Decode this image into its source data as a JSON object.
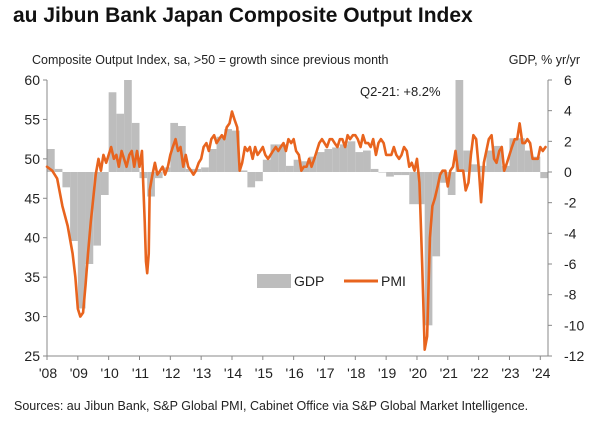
{
  "header": {
    "title": "au Jibun Bank Japan Composite Output Index",
    "subtitle": "Composite Output Index, sa, >50 = growth since previous month",
    "right_axis_label": "GDP, % yr/yr"
  },
  "footer": {
    "source": "Sources: au Jibun Bank, S&P Global PMI, Cabinet Office via S&P Global Market Intelligence."
  },
  "chart_data": {
    "type": "line",
    "title": "au Jibun Bank Japan Composite Output Index",
    "annotation": "Q2-21: +8.2%",
    "legend": {
      "position": "center",
      "entries": [
        "GDP",
        "PMI"
      ]
    },
    "x_axis": {
      "ticks": [
        "'08",
        "'09",
        "'10",
        "'11",
        "'12",
        "'13",
        "'14",
        "'15",
        "'16",
        "'17",
        "'18",
        "'19",
        "'20",
        "'21",
        "'22",
        "'23",
        "'24"
      ],
      "range": [
        2008.0,
        2024.25
      ]
    },
    "y_left": {
      "range": [
        25,
        60
      ],
      "ticks": [
        25,
        30,
        35,
        40,
        45,
        50,
        55,
        60
      ]
    },
    "y_right": {
      "range": [
        -12,
        6
      ],
      "ticks": [
        -12,
        -10,
        -8,
        -6,
        -4,
        -2,
        0,
        2,
        4,
        6
      ]
    },
    "colors": {
      "gdp": "#bdbdbd",
      "pmi": "#e8641e",
      "axis": "#888888"
    },
    "gdp": {
      "name": "GDP",
      "quarters": [
        "Q1-08",
        "Q2-08",
        "Q3-08",
        "Q4-08",
        "Q1-09",
        "Q2-09",
        "Q3-09",
        "Q4-09",
        "Q1-10",
        "Q2-10",
        "Q3-10",
        "Q4-10",
        "Q1-11",
        "Q2-11",
        "Q3-11",
        "Q4-11",
        "Q1-12",
        "Q2-12",
        "Q3-12",
        "Q4-12",
        "Q1-13",
        "Q2-13",
        "Q3-13",
        "Q4-13",
        "Q1-14",
        "Q2-14",
        "Q3-14",
        "Q4-14",
        "Q1-15",
        "Q2-15",
        "Q3-15",
        "Q4-15",
        "Q1-16",
        "Q2-16",
        "Q3-16",
        "Q4-16",
        "Q1-17",
        "Q2-17",
        "Q3-17",
        "Q4-17",
        "Q1-18",
        "Q2-18",
        "Q3-18",
        "Q4-18",
        "Q1-19",
        "Q2-19",
        "Q3-19",
        "Q4-19",
        "Q1-20",
        "Q2-20",
        "Q3-20",
        "Q4-20",
        "Q1-21",
        "Q2-21",
        "Q3-21",
        "Q4-21",
        "Q1-22",
        "Q2-22",
        "Q3-22",
        "Q4-22",
        "Q1-23",
        "Q2-23",
        "Q3-23",
        "Q4-23",
        "Q1-24"
      ],
      "x": [
        2008.0,
        2008.25,
        2008.5,
        2008.75,
        2009.0,
        2009.25,
        2009.5,
        2009.75,
        2010.0,
        2010.25,
        2010.5,
        2010.75,
        2011.0,
        2011.25,
        2011.5,
        2011.75,
        2012.0,
        2012.25,
        2012.5,
        2012.75,
        2013.0,
        2013.25,
        2013.5,
        2013.75,
        2014.0,
        2014.25,
        2014.5,
        2014.75,
        2015.0,
        2015.25,
        2015.5,
        2015.75,
        2016.0,
        2016.25,
        2016.5,
        2016.75,
        2017.0,
        2017.25,
        2017.5,
        2017.75,
        2018.0,
        2018.25,
        2018.5,
        2018.75,
        2019.0,
        2019.25,
        2019.5,
        2019.75,
        2020.0,
        2020.25,
        2020.5,
        2020.75,
        2021.0,
        2021.25,
        2021.5,
        2021.75,
        2022.0,
        2022.25,
        2022.5,
        2022.75,
        2023.0,
        2023.25,
        2023.5,
        2023.75,
        2024.0
      ],
      "values": [
        1.5,
        0.2,
        -1.0,
        -4.5,
        -8.9,
        -6.0,
        -4.8,
        -1.5,
        5.2,
        3.8,
        6.0,
        3.2,
        -0.4,
        -1.6,
        -0.4,
        0.3,
        3.2,
        3.0,
        0.2,
        0.2,
        0.3,
        1.5,
        2.3,
        2.8,
        2.7,
        0.1,
        -1.0,
        -0.6,
        0.8,
        1.8,
        1.8,
        0.4,
        0.8,
        0.7,
        1.0,
        1.3,
        1.5,
        1.6,
        1.8,
        2.0,
        1.3,
        1.4,
        0.2,
        0.0,
        -0.3,
        -0.2,
        -0.2,
        -2.1,
        -2.1,
        -10.0,
        -5.5,
        -0.7,
        -1.5,
        8.2,
        1.4,
        0.5,
        0.4,
        1.4,
        1.7,
        0.4,
        2.2,
        2.2,
        1.4,
        1.0,
        -0.4
      ]
    },
    "pmi": {
      "name": "PMI",
      "points": [
        [
          2008.0,
          49.0
        ],
        [
          2008.17,
          48.5
        ],
        [
          2008.33,
          47.5
        ],
        [
          2008.5,
          44.0
        ],
        [
          2008.67,
          41.5
        ],
        [
          2008.83,
          38.0
        ],
        [
          2008.92,
          35.0
        ],
        [
          2009.0,
          31.0
        ],
        [
          2009.08,
          30.0
        ],
        [
          2009.17,
          30.5
        ],
        [
          2009.25,
          34.0
        ],
        [
          2009.33,
          38.0
        ],
        [
          2009.42,
          42.0
        ],
        [
          2009.5,
          45.0
        ],
        [
          2009.58,
          48.0
        ],
        [
          2009.67,
          50.0
        ],
        [
          2009.75,
          48.5
        ],
        [
          2009.83,
          50.5
        ],
        [
          2009.92,
          49.5
        ],
        [
          2010.0,
          50.5
        ],
        [
          2010.08,
          51.5
        ],
        [
          2010.17,
          50.0
        ],
        [
          2010.25,
          50.5
        ],
        [
          2010.33,
          49.0
        ],
        [
          2010.42,
          51.0
        ],
        [
          2010.5,
          50.0
        ],
        [
          2010.58,
          49.0
        ],
        [
          2010.67,
          50.5
        ],
        [
          2010.75,
          51.0
        ],
        [
          2010.83,
          49.0
        ],
        [
          2010.92,
          51.0
        ],
        [
          2011.0,
          49.0
        ],
        [
          2011.08,
          51.0
        ],
        [
          2011.17,
          42.0
        ],
        [
          2011.21,
          37.0
        ],
        [
          2011.25,
          35.5
        ],
        [
          2011.3,
          38.0
        ],
        [
          2011.33,
          46.0
        ],
        [
          2011.42,
          48.0
        ],
        [
          2011.5,
          49.5
        ],
        [
          2011.58,
          48.0
        ],
        [
          2011.67,
          48.5
        ],
        [
          2011.75,
          49.0
        ],
        [
          2011.83,
          48.0
        ],
        [
          2011.92,
          49.0
        ],
        [
          2012.0,
          50.5
        ],
        [
          2012.08,
          51.5
        ],
        [
          2012.17,
          52.5
        ],
        [
          2012.25,
          51.0
        ],
        [
          2012.33,
          51.5
        ],
        [
          2012.42,
          49.0
        ],
        [
          2012.5,
          50.5
        ],
        [
          2012.58,
          49.0
        ],
        [
          2012.67,
          48.5
        ],
        [
          2012.75,
          48.0
        ],
        [
          2012.83,
          48.5
        ],
        [
          2012.92,
          49.5
        ],
        [
          2013.0,
          50.0
        ],
        [
          2013.08,
          51.5
        ],
        [
          2013.17,
          52.0
        ],
        [
          2013.25,
          51.0
        ],
        [
          2013.33,
          52.5
        ],
        [
          2013.42,
          53.0
        ],
        [
          2013.5,
          52.0
        ],
        [
          2013.58,
          52.5
        ],
        [
          2013.67,
          53.0
        ],
        [
          2013.75,
          52.5
        ],
        [
          2013.83,
          54.0
        ],
        [
          2013.92,
          54.5
        ],
        [
          2014.0,
          56.0
        ],
        [
          2014.08,
          55.0
        ],
        [
          2014.17,
          54.0
        ],
        [
          2014.25,
          48.5
        ],
        [
          2014.33,
          49.5
        ],
        [
          2014.42,
          51.5
        ],
        [
          2014.5,
          51.0
        ],
        [
          2014.58,
          51.5
        ],
        [
          2014.67,
          50.0
        ],
        [
          2014.75,
          51.5
        ],
        [
          2014.83,
          50.5
        ],
        [
          2014.92,
          51.0
        ],
        [
          2015.0,
          51.5
        ],
        [
          2015.08,
          50.5
        ],
        [
          2015.17,
          50.0
        ],
        [
          2015.25,
          50.5
        ],
        [
          2015.33,
          51.0
        ],
        [
          2015.42,
          51.5
        ],
        [
          2015.5,
          51.0
        ],
        [
          2015.58,
          51.5
        ],
        [
          2015.67,
          52.0
        ],
        [
          2015.75,
          51.0
        ],
        [
          2015.83,
          52.5
        ],
        [
          2015.92,
          52.0
        ],
        [
          2016.0,
          52.5
        ],
        [
          2016.08,
          51.0
        ],
        [
          2016.17,
          50.5
        ],
        [
          2016.25,
          48.5
        ],
        [
          2016.33,
          49.0
        ],
        [
          2016.42,
          49.0
        ],
        [
          2016.5,
          50.0
        ],
        [
          2016.58,
          49.0
        ],
        [
          2016.67,
          50.0
        ],
        [
          2016.75,
          51.0
        ],
        [
          2016.83,
          52.0
        ],
        [
          2016.92,
          52.5
        ],
        [
          2017.0,
          52.0
        ],
        [
          2017.08,
          51.5
        ],
        [
          2017.17,
          52.5
        ],
        [
          2017.25,
          52.5
        ],
        [
          2017.33,
          52.0
        ],
        [
          2017.42,
          51.5
        ],
        [
          2017.5,
          52.5
        ],
        [
          2017.58,
          52.5
        ],
        [
          2017.67,
          51.5
        ],
        [
          2017.75,
          53.0
        ],
        [
          2017.83,
          52.5
        ],
        [
          2017.92,
          53.0
        ],
        [
          2018.0,
          53.0
        ],
        [
          2018.08,
          52.5
        ],
        [
          2018.17,
          51.5
        ],
        [
          2018.25,
          53.0
        ],
        [
          2018.33,
          52.0
        ],
        [
          2018.42,
          52.0
        ],
        [
          2018.5,
          51.5
        ],
        [
          2018.58,
          52.5
        ],
        [
          2018.67,
          50.5
        ],
        [
          2018.75,
          52.0
        ],
        [
          2018.83,
          52.5
        ],
        [
          2018.92,
          52.0
        ],
        [
          2019.0,
          50.5
        ],
        [
          2019.08,
          50.5
        ],
        [
          2019.17,
          50.5
        ],
        [
          2019.25,
          51.5
        ],
        [
          2019.33,
          50.5
        ],
        [
          2019.42,
          50.0
        ],
        [
          2019.5,
          50.5
        ],
        [
          2019.58,
          51.5
        ],
        [
          2019.67,
          51.0
        ],
        [
          2019.75,
          49.0
        ],
        [
          2019.83,
          49.5
        ],
        [
          2019.92,
          48.5
        ],
        [
          2020.0,
          50.0
        ],
        [
          2020.08,
          47.0
        ],
        [
          2020.17,
          36.5
        ],
        [
          2020.25,
          25.8
        ],
        [
          2020.33,
          27.5
        ],
        [
          2020.42,
          40.0
        ],
        [
          2020.5,
          44.0
        ],
        [
          2020.58,
          45.0
        ],
        [
          2020.67,
          46.5
        ],
        [
          2020.75,
          48.0
        ],
        [
          2020.83,
          48.5
        ],
        [
          2020.92,
          48.5
        ],
        [
          2021.0,
          46.5
        ],
        [
          2021.08,
          48.5
        ],
        [
          2021.17,
          49.0
        ],
        [
          2021.25,
          51.0
        ],
        [
          2021.33,
          48.5
        ],
        [
          2021.42,
          48.5
        ],
        [
          2021.5,
          48.5
        ],
        [
          2021.58,
          46.0
        ],
        [
          2021.67,
          47.0
        ],
        [
          2021.75,
          50.5
        ],
        [
          2021.83,
          53.0
        ],
        [
          2021.92,
          52.5
        ],
        [
          2022.0,
          49.0
        ],
        [
          2022.08,
          44.5
        ],
        [
          2022.17,
          49.5
        ],
        [
          2022.25,
          51.0
        ],
        [
          2022.33,
          52.5
        ],
        [
          2022.42,
          53.0
        ],
        [
          2022.5,
          50.0
        ],
        [
          2022.58,
          49.5
        ],
        [
          2022.67,
          51.0
        ],
        [
          2022.75,
          51.5
        ],
        [
          2022.83,
          48.5
        ],
        [
          2022.92,
          49.5
        ],
        [
          2023.0,
          50.5
        ],
        [
          2023.08,
          51.5
        ],
        [
          2023.17,
          52.5
        ],
        [
          2023.25,
          52.5
        ],
        [
          2023.33,
          54.5
        ],
        [
          2023.42,
          52.0
        ],
        [
          2023.5,
          52.0
        ],
        [
          2023.58,
          52.5
        ],
        [
          2023.67,
          52.0
        ],
        [
          2023.75,
          50.0
        ],
        [
          2023.83,
          50.0
        ],
        [
          2023.92,
          50.0
        ],
        [
          2024.0,
          51.5
        ],
        [
          2024.08,
          51.0
        ],
        [
          2024.17,
          51.5
        ]
      ]
    }
  }
}
